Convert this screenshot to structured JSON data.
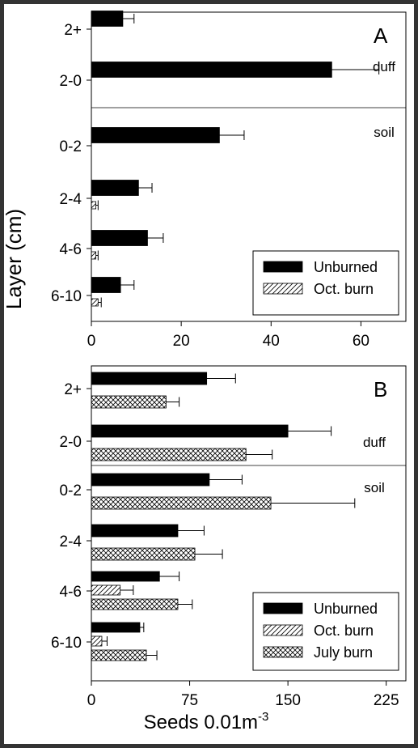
{
  "colors": {
    "background_border": "#333333",
    "panel": "#ffffff",
    "ink": "#000000"
  },
  "shared": {
    "ylabel": "Layer (cm)",
    "xlabel_main": "Seeds 0.01m",
    "xlabel_sup": "-3"
  },
  "chart_data": [
    {
      "type": "bar",
      "orientation": "horizontal",
      "panel_label": "A",
      "categories": [
        "2+",
        "2-0",
        "0-2",
        "2-4",
        "4-6",
        "6-10"
      ],
      "xlim": [
        0,
        70
      ],
      "xticks": [
        0,
        20,
        40,
        60
      ],
      "region_labels": {
        "upper": "duff",
        "lower": "soil"
      },
      "divider_between": [
        "2-0",
        "0-2"
      ],
      "series": [
        {
          "name": "Unburned",
          "pattern": "solid",
          "values": [
            7,
            53.5,
            28.5,
            10.5,
            12.5,
            6.5
          ],
          "errors": [
            2.5,
            10.5,
            5.5,
            3,
            3.5,
            3
          ]
        },
        {
          "name": "Oct. burn",
          "pattern": "diagonal",
          "values": [
            null,
            null,
            null,
            1,
            1,
            1.5
          ],
          "errors": [
            null,
            null,
            null,
            0.5,
            0.5,
            0.7
          ]
        }
      ],
      "legend": {
        "position": "bottom-right",
        "entries": [
          "Unburned",
          "Oct. burn"
        ]
      }
    },
    {
      "type": "bar",
      "orientation": "horizontal",
      "panel_label": "B",
      "categories": [
        "2+",
        "2-0",
        "0-2",
        "2-4",
        "4-6",
        "6-10"
      ],
      "xlim": [
        0,
        240
      ],
      "xticks": [
        0,
        75,
        150,
        225
      ],
      "region_labels": {
        "upper": "duff",
        "lower": "soil"
      },
      "divider_between": [
        "2-0",
        "0-2"
      ],
      "series": [
        {
          "name": "Unburned",
          "pattern": "solid",
          "values": [
            88,
            150,
            90,
            66,
            52,
            37
          ],
          "errors": [
            22,
            33,
            25,
            20,
            15,
            3
          ]
        },
        {
          "name": "Oct. burn",
          "pattern": "diagonal",
          "values": [
            null,
            null,
            null,
            null,
            22,
            8
          ],
          "errors": [
            null,
            null,
            null,
            null,
            10,
            4
          ]
        },
        {
          "name": "July burn",
          "pattern": "crosshatch",
          "values": [
            57,
            118,
            137,
            79,
            66,
            42
          ],
          "errors": [
            10,
            20,
            64,
            21,
            11,
            8
          ]
        }
      ],
      "legend": {
        "position": "bottom-right",
        "entries": [
          "Unburned",
          "Oct. burn",
          "July burn"
        ]
      }
    }
  ]
}
